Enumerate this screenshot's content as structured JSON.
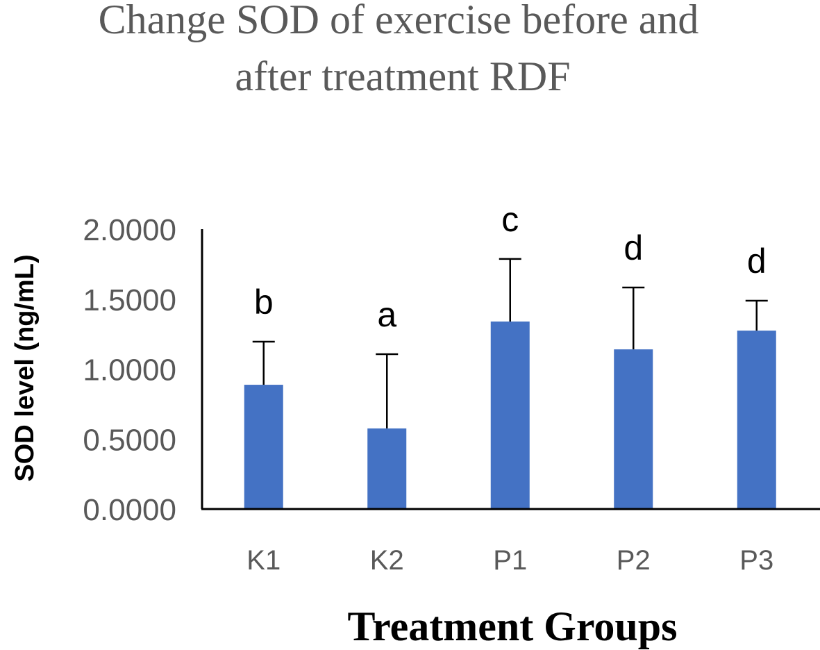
{
  "chart_data": {
    "type": "bar",
    "title": [
      "Change SOD of exercise before and",
      "after treatment RDF"
    ],
    "xlabel": "Treatment  Groups",
    "ylabel": "SOD level (ng/mL)",
    "ylim": [
      0,
      2
    ],
    "yticks": [
      "0.0000",
      "0.5000",
      "1.0000",
      "1.5000",
      "2.0000"
    ],
    "ytick_values": [
      0,
      0.5,
      1,
      1.5,
      2
    ],
    "categories": [
      "K1",
      "K2",
      "P1",
      "P2",
      "P3"
    ],
    "values": [
      0.888,
      0.576,
      1.34,
      1.141,
      1.275
    ],
    "error_upper": [
      1.196,
      1.107,
      1.787,
      1.583,
      1.489
    ],
    "significance_letters": [
      "b",
      "a",
      "c",
      "d",
      "d"
    ],
    "grid": false,
    "bar_color": "#4472C4"
  }
}
